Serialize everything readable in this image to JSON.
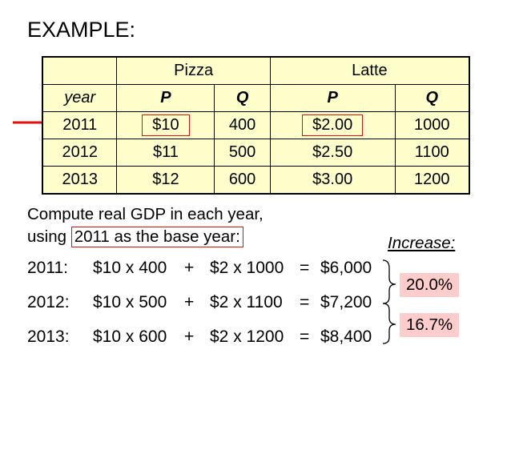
{
  "heading": "EXAMPLE:",
  "table": {
    "groups": [
      "Pizza",
      "Latte"
    ],
    "subheaders": [
      "year",
      "P",
      "Q",
      "P",
      "Q"
    ],
    "rows": [
      [
        "2011",
        "$10",
        "400",
        "$2.00",
        "1000"
      ],
      [
        "2012",
        "$11",
        "500",
        "$2.50",
        "1100"
      ],
      [
        "2013",
        "$12",
        "600",
        "$3.00",
        "1200"
      ]
    ]
  },
  "compute": {
    "line1": "Compute real GDP in each year,",
    "line2_prefix": "using ",
    "line2_boxed": "2011 as the base year:"
  },
  "increase_label": "Increase:",
  "equations": [
    {
      "year": "2011:",
      "term1": "$10 x 400",
      "plus": "+",
      "term2": "$2 x 1000",
      "eq": "=",
      "result": "$6,000"
    },
    {
      "year": "2012:",
      "term1": "$10 x 500",
      "plus": "+",
      "term2": "$2 x 1100",
      "eq": "=",
      "result": "$7,200"
    },
    {
      "year": "2013:",
      "term1": "$10 x 600",
      "plus": "+",
      "term2": "$2 x 1200",
      "eq": "=",
      "result": "$8,400"
    }
  ],
  "increases": [
    "20.0%",
    "16.7%"
  ],
  "colors": {
    "table_bg": "#ffffcc",
    "highlight_border": "#e01010",
    "arrow": "#e01010",
    "pct_bg": "#ffcccc"
  }
}
